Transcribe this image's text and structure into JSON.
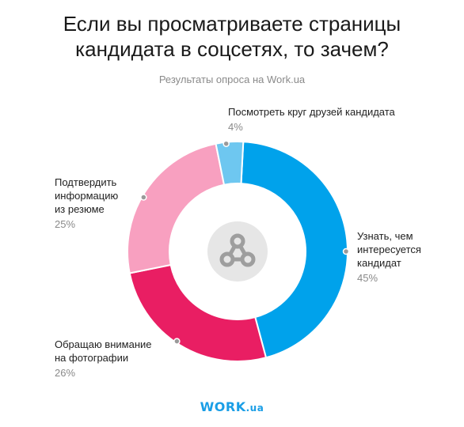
{
  "header": {
    "title_line1": "Если вы просматриваете страницы",
    "title_line2": "кандидата в соцсетях, то зачем?",
    "subtitle": "Результаты опроса на Work.ua"
  },
  "logo": {
    "main": "WORK",
    "suffix": ".ua"
  },
  "colors": {
    "blue": "#00A2EB",
    "pink": "#E91E63",
    "light_pink": "#F8A0C0",
    "light_blue": "#6EC7F0",
    "center_circle": "#E6E6E6",
    "center_icon": "#9E9E9E",
    "dot": "#9A9A9A"
  },
  "chart_data": {
    "type": "pie",
    "variant": "donut",
    "title": "Если вы просматриваете страницы кандидата в соцсетях, то зачем?",
    "subtitle": "Результаты опроса на Work.ua",
    "unit": "%",
    "slices": [
      {
        "label": "Узнать, чем интересуется кандидат",
        "label_lines": [
          "Узнать, чем",
          "интересуется",
          "кандидат"
        ],
        "value": 45,
        "value_text": "45%",
        "color": "#00A2EB"
      },
      {
        "label": "Обращаю внимание на фотографии",
        "label_lines": [
          "Обращаю внимание",
          "на фотографии"
        ],
        "value": 26,
        "value_text": "26%",
        "color": "#E91E63"
      },
      {
        "label": "Подтвердить информацию из резюме",
        "label_lines": [
          "Подтвердить",
          "информацию",
          "из резюме"
        ],
        "value": 25,
        "value_text": "25%",
        "color": "#F8A0C0"
      },
      {
        "label": "Посмотреть круг друзей кандидата",
        "label_lines": [
          "Посмотреть круг друзей кандидата"
        ],
        "value": 4,
        "value_text": "4%",
        "color": "#6EC7F0"
      }
    ]
  }
}
